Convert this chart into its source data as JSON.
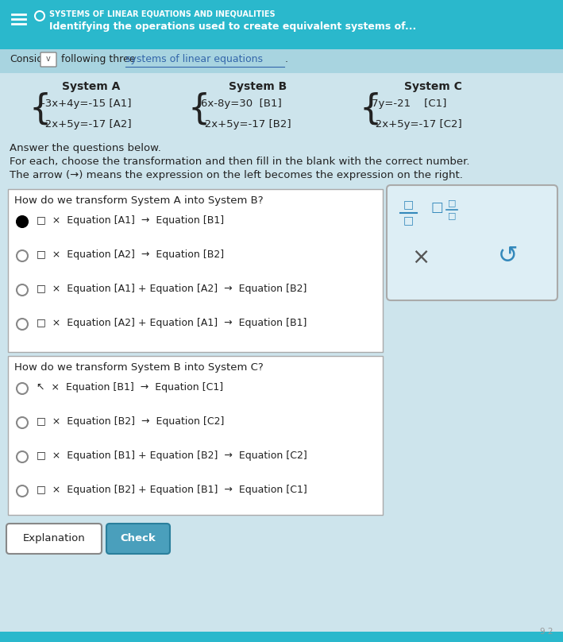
{
  "bg_top_color": "#2ab8cc",
  "bg_main_color": "#cde4ec",
  "title_line1": "SYSTEMS OF LINEAR EQUATIONS AND INEQUALITIES",
  "title_line2": "Identifying the operations used to create equivalent systems of...",
  "system_a_label": "System A",
  "system_b_label": "System B",
  "system_c_label": "System C",
  "sys_a_eq1": "-3x+4y=-15 [A1]",
  "sys_a_eq2": "-2x+5y=-17 [A2]",
  "sys_b_eq1": "6x-8y=30  [B1]",
  "sys_b_eq2": "-2x+5y=-17 [B2]",
  "sys_c_eq1": "7y=-21    [C1]",
  "sys_c_eq2": "-2x+5y=-17 [C2]",
  "instructions_line1": "Answer the questions below.",
  "instructions_line2": "For each, choose the transformation and then fill in the blank with the correct number.",
  "instructions_line3": "The arrow (→) means the expression on the left becomes the expression on the right.",
  "q1_title": "How do we transform System A into System B?",
  "q1_options": [
    "□  ×  Equation [A1]  →  Equation [B1]",
    "□  ×  Equation [A2]  →  Equation [B2]",
    "□  ×  Equation [A1] + Equation [A2]  →  Equation [B2]",
    "□  ×  Equation [A2] + Equation [A1]  →  Equation [B1]"
  ],
  "q1_selected": 0,
  "q2_title": "How do we transform System B into System C?",
  "q2_options": [
    "↖  ×  Equation [B1]  →  Equation [C1]",
    "□  ×  Equation [B2]  →  Equation [C2]",
    "□  ×  Equation [B1] + Equation [B2]  →  Equation [C2]",
    "□  ×  Equation [B2] + Equation [B1]  →  Equation [C1]"
  ],
  "q2_selected": -1,
  "button_explanation": "Explanation",
  "button_check": "Check",
  "teal_color": "#2ab8cc",
  "text_color": "#222222",
  "link_color": "#3366aa",
  "subheader_color": "#a8d4e0"
}
